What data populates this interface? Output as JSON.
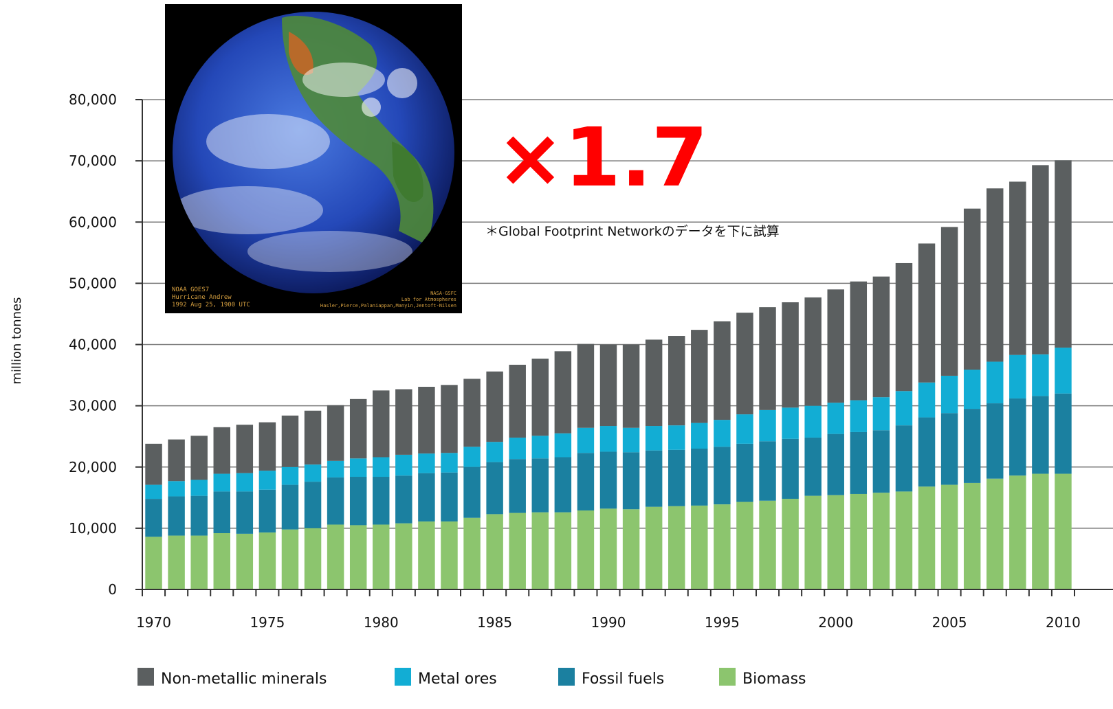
{
  "chart_data": {
    "type": "bar",
    "stacked": true,
    "ylabel": "million tonnes",
    "ylim": [
      0,
      80000
    ],
    "y_ticks": [
      "0",
      "10,000",
      "20,000",
      "30,000",
      "40,000",
      "50,000",
      "60,000",
      "70,000",
      "80,000"
    ],
    "x_tick_labels": [
      "1970",
      "1975",
      "1980",
      "1985",
      "1990",
      "1995",
      "2000",
      "2005",
      "2010"
    ],
    "grid": true,
    "legend_position": "bottom",
    "categories": [
      1970,
      1971,
      1972,
      1973,
      1974,
      1975,
      1976,
      1977,
      1978,
      1979,
      1980,
      1981,
      1982,
      1983,
      1984,
      1985,
      1986,
      1987,
      1988,
      1989,
      1990,
      1991,
      1992,
      1993,
      1994,
      1995,
      1996,
      1997,
      1998,
      1999,
      2000,
      2001,
      2002,
      2003,
      2004,
      2005,
      2006,
      2007,
      2008,
      2009,
      2010
    ],
    "series": [
      {
        "name": "Biomass",
        "color": "#8cc56e",
        "values": [
          8600,
          8800,
          8800,
          9200,
          9100,
          9300,
          9800,
          10000,
          10600,
          10500,
          10600,
          10800,
          11100,
          11100,
          11700,
          12300,
          12500,
          12600,
          12600,
          12900,
          13200,
          13100,
          13500,
          13600,
          13700,
          13900,
          14300,
          14500,
          14800,
          15300,
          15400,
          15600,
          15800,
          16000,
          16800,
          17100,
          17400,
          18100,
          18600,
          18900,
          18900
        ]
      },
      {
        "name": "Fossil fuels",
        "color": "#1b80a0",
        "values": [
          6200,
          6400,
          6500,
          6800,
          6900,
          7000,
          7300,
          7600,
          7700,
          7900,
          7800,
          7800,
          7900,
          8000,
          8300,
          8500,
          8800,
          8800,
          9000,
          9400,
          9300,
          9300,
          9200,
          9200,
          9300,
          9400,
          9500,
          9700,
          9800,
          9500,
          10000,
          10100,
          10200,
          10800,
          11300,
          11700,
          12100,
          12300,
          12600,
          12700,
          13100
        ]
      },
      {
        "name": "Metal ores",
        "color": "#12add4",
        "values": [
          2300,
          2500,
          2600,
          2900,
          3000,
          3100,
          2900,
          2800,
          2700,
          3000,
          3200,
          3400,
          3200,
          3200,
          3300,
          3300,
          3500,
          3700,
          3900,
          4100,
          4200,
          4000,
          4000,
          4000,
          4200,
          4400,
          4800,
          5100,
          5100,
          5200,
          5100,
          5200,
          5400,
          5600,
          5700,
          6100,
          6400,
          6800,
          7100,
          6800,
          7500
        ]
      },
      {
        "name": "Non-metallic minerals",
        "color": "#5b5f60",
        "values": [
          6700,
          6800,
          7200,
          7600,
          7900,
          7900,
          8400,
          8800,
          9100,
          9700,
          10900,
          10700,
          10900,
          11100,
          11100,
          11500,
          11900,
          12600,
          13400,
          13700,
          13300,
          13600,
          14100,
          14600,
          15200,
          16100,
          16600,
          16800,
          17200,
          17700,
          18500,
          19400,
          19700,
          20900,
          22700,
          24300,
          26300,
          28300,
          28300,
          30900,
          30600
        ]
      }
    ]
  },
  "photo": {
    "caption_left": "NOAA GOES7\nHurricane Andrew\n1992 Aug 25, 1900 UTC",
    "caption_right": "NASA-GSFC\nLab for Atmospheres\nHasler,Pierce,Palaniappan,Manyin,Jentoft-Nilsen"
  },
  "annotation": {
    "multiplier": "×1.7",
    "footnote": "＊Global Footprint Networkのデータを下に試算"
  }
}
